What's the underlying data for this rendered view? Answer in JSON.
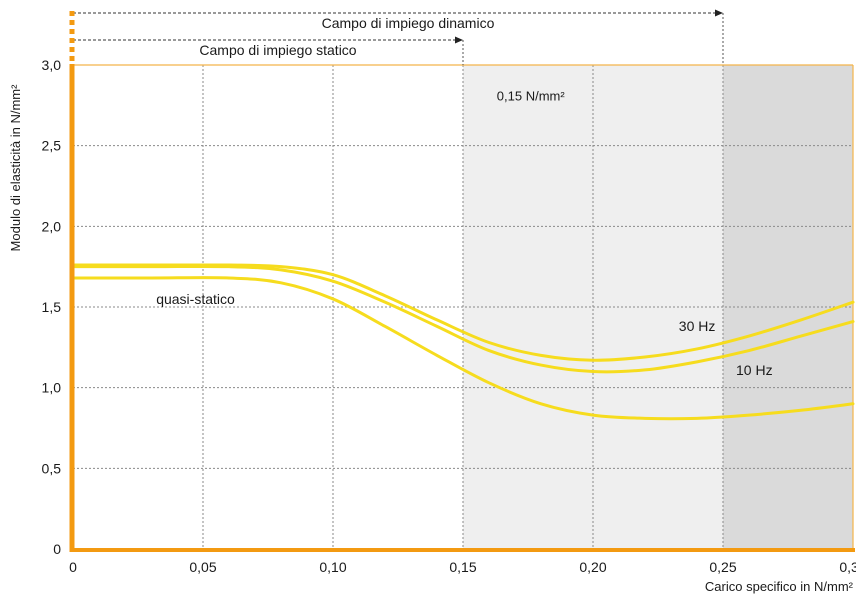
{
  "chart_data": {
    "type": "line",
    "xlabel": "Carico specifico in N/mm²",
    "ylabel": "Modulo di elasticità in N/mm²",
    "xlim": [
      0,
      0.3
    ],
    "ylim": [
      0,
      3.0
    ],
    "x_ticks": [
      0,
      0.05,
      0.1,
      0.15,
      0.2,
      0.25,
      0.3
    ],
    "x_tick_labels": [
      "0",
      "0,05",
      "0,10",
      "0,15",
      "0,20",
      "0,25",
      "0,30"
    ],
    "y_ticks": [
      0,
      0.5,
      1.0,
      1.5,
      2.0,
      2.5,
      3.0
    ],
    "y_tick_labels": [
      "0",
      "0,5",
      "1,0",
      "1,5",
      "2,0",
      "2,5",
      "3,0"
    ],
    "grid": true,
    "shaded_regions": [
      {
        "from": 0.15,
        "to": 0.25,
        "color": "#efefef"
      },
      {
        "from": 0.25,
        "to": 0.3,
        "color": "#dadada"
      }
    ],
    "ranges": [
      {
        "label": "Campo di impiego dinamico",
        "from": 0,
        "to": 0.25
      },
      {
        "label": "Campo di impiego statico",
        "from": 0,
        "to": 0.15
      }
    ],
    "annotations": [
      {
        "text": "0,15 N/mm²",
        "x": 0.163,
        "y": 2.78
      }
    ],
    "series": [
      {
        "name": "30 Hz",
        "label_at": [
          0.233,
          1.35
        ],
        "x": [
          0,
          0.03,
          0.06,
          0.08,
          0.1,
          0.12,
          0.14,
          0.16,
          0.18,
          0.2,
          0.22,
          0.24,
          0.26,
          0.28,
          0.3
        ],
        "y": [
          1.76,
          1.76,
          1.76,
          1.75,
          1.7,
          1.57,
          1.42,
          1.28,
          1.2,
          1.17,
          1.19,
          1.24,
          1.32,
          1.42,
          1.53
        ]
      },
      {
        "name": "10 Hz",
        "label_at": [
          0.255,
          1.08
        ],
        "x": [
          0,
          0.03,
          0.06,
          0.08,
          0.1,
          0.12,
          0.14,
          0.16,
          0.18,
          0.2,
          0.22,
          0.24,
          0.26,
          0.28,
          0.3
        ],
        "y": [
          1.75,
          1.75,
          1.75,
          1.73,
          1.66,
          1.53,
          1.38,
          1.23,
          1.14,
          1.1,
          1.11,
          1.16,
          1.23,
          1.32,
          1.41
        ]
      },
      {
        "name": "quasi-statico",
        "label_at": [
          0.032,
          1.52
        ],
        "x": [
          0,
          0.03,
          0.06,
          0.08,
          0.1,
          0.12,
          0.14,
          0.16,
          0.18,
          0.2,
          0.22,
          0.24,
          0.26,
          0.28,
          0.3
        ],
        "y": [
          1.68,
          1.68,
          1.68,
          1.65,
          1.55,
          1.38,
          1.2,
          1.03,
          0.9,
          0.83,
          0.81,
          0.81,
          0.83,
          0.86,
          0.9
        ]
      }
    ],
    "colors": {
      "curve": "#f6dc1e",
      "axis": "#f39a11",
      "grid": "#8a8a8a",
      "plot_border": "#f4b54a",
      "text": "#1a1a1a"
    }
  }
}
